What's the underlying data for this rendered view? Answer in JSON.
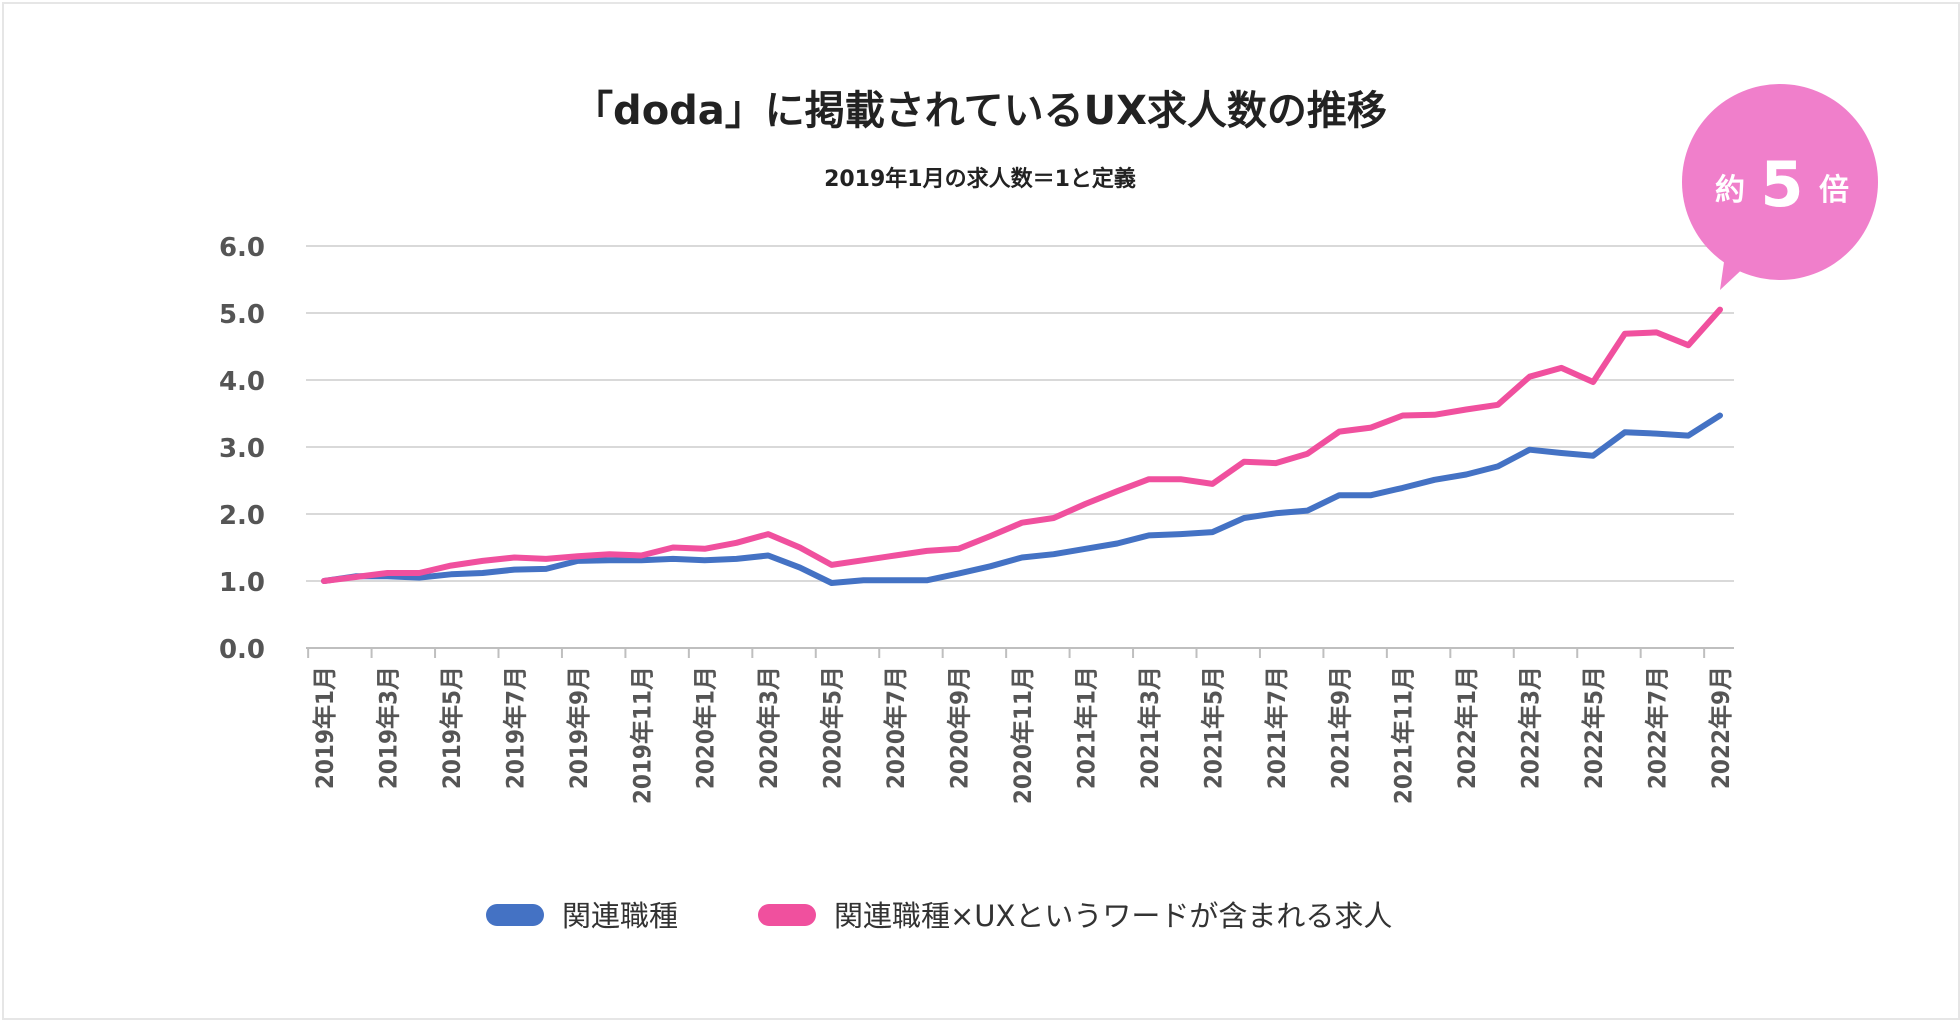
{
  "chart_data": {
    "type": "line",
    "title": "「doda」に掲載されているUX求人数の推移",
    "subtitle": "2019年1月の求人数＝1と定義",
    "ylim": [
      0,
      6
    ],
    "yticks": [
      "0.0",
      "1.0",
      "2.0",
      "3.0",
      "4.0",
      "5.0",
      "6.0"
    ],
    "grid": true,
    "legend_position": "bottom",
    "x": [
      "2019年1月",
      "2019年2月",
      "2019年3月",
      "2019年4月",
      "2019年5月",
      "2019年6月",
      "2019年7月",
      "2019年8月",
      "2019年9月",
      "2019年10月",
      "2019年11月",
      "2019年12月",
      "2020年1月",
      "2020年2月",
      "2020年3月",
      "2020年4月",
      "2020年5月",
      "2020年6月",
      "2020年7月",
      "2020年8月",
      "2020年9月",
      "2020年10月",
      "2020年11月",
      "2020年12月",
      "2021年1月",
      "2021年2月",
      "2021年3月",
      "2021年4月",
      "2021年5月",
      "2021年6月",
      "2021年7月",
      "2021年8月",
      "2021年9月",
      "2021年10月",
      "2021年11月",
      "2021年12月",
      "2022年1月",
      "2022年2月",
      "2022年3月",
      "2022年4月",
      "2022年5月",
      "2022年6月",
      "2022年7月",
      "2022年8月",
      "2022年9月"
    ],
    "xtick_labels": [
      "2019年1月",
      "2019年3月",
      "2019年5月",
      "2019年7月",
      "2019年9月",
      "2019年11月",
      "2020年1月",
      "2020年3月",
      "2020年5月",
      "2020年7月",
      "2020年9月",
      "2020年11月",
      "2021年1月",
      "2021年3月",
      "2021年5月",
      "2021年7月",
      "2021年9月",
      "2021年11月",
      "2022年1月",
      "2022年3月",
      "2022年5月",
      "2022年7月",
      "2022年9月"
    ],
    "series": [
      {
        "name": "関連職種",
        "color": "#4472c4",
        "values": [
          1.0,
          1.07,
          1.07,
          1.05,
          1.1,
          1.12,
          1.17,
          1.18,
          1.3,
          1.31,
          1.31,
          1.33,
          1.31,
          1.33,
          1.38,
          1.2,
          0.97,
          1.01,
          1.01,
          1.01,
          1.11,
          1.22,
          1.35,
          1.4,
          1.48,
          1.56,
          1.68,
          1.7,
          1.73,
          1.94,
          2.01,
          2.05,
          2.28,
          2.28,
          2.39,
          2.51,
          2.59,
          2.71,
          2.96,
          2.91,
          2.87,
          3.22,
          3.2,
          3.17,
          3.47
        ]
      },
      {
        "name": "関連職種×UXというワードが含まれる求人",
        "color": "#f0509e",
        "values": [
          1.0,
          1.06,
          1.12,
          1.12,
          1.23,
          1.3,
          1.35,
          1.33,
          1.37,
          1.4,
          1.38,
          1.5,
          1.48,
          1.57,
          1.7,
          1.5,
          1.24,
          1.31,
          1.38,
          1.45,
          1.48,
          1.67,
          1.87,
          1.94,
          2.15,
          2.34,
          2.52,
          2.52,
          2.45,
          2.78,
          2.76,
          2.9,
          3.23,
          3.29,
          3.47,
          3.48,
          3.56,
          3.63,
          4.05,
          4.18,
          3.97,
          4.69,
          4.71,
          4.52,
          5.05
        ]
      }
    ],
    "annotation": {
      "prefix": "約",
      "value": "5",
      "suffix": "倍",
      "color": "#f07fcb"
    }
  }
}
